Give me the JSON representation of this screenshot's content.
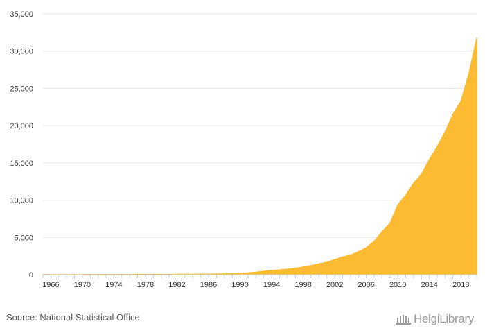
{
  "chart_data": {
    "type": "area",
    "color": "#FBB829",
    "grid": "horizontal",
    "xlim": [
      1965,
      2020
    ],
    "ylim": [
      0,
      35000
    ],
    "x_ticks": [
      "1966",
      "1970",
      "1974",
      "1978",
      "1982",
      "1986",
      "1990",
      "1994",
      "1998",
      "2002",
      "2006",
      "2010",
      "2014",
      "2018"
    ],
    "y_ticks": [
      "0",
      "5,000",
      "10,000",
      "15,000",
      "20,000",
      "25,000",
      "30,000",
      "35,000"
    ],
    "x": [
      1965,
      1966,
      1967,
      1968,
      1969,
      1970,
      1971,
      1972,
      1973,
      1974,
      1975,
      1976,
      1977,
      1978,
      1979,
      1980,
      1981,
      1982,
      1983,
      1984,
      1985,
      1986,
      1987,
      1988,
      1989,
      1990,
      1991,
      1992,
      1993,
      1994,
      1995,
      1996,
      1997,
      1998,
      1999,
      2000,
      2001,
      2002,
      2003,
      2004,
      2005,
      2006,
      2007,
      2008,
      2009,
      2010,
      2011,
      2012,
      2013,
      2014,
      2015,
      2016,
      2017,
      2018,
      2019,
      2020
    ],
    "values": [
      30,
      32,
      34,
      36,
      38,
      40,
      42,
      44,
      46,
      48,
      50,
      52,
      54,
      56,
      58,
      60,
      62,
      64,
      66,
      70,
      80,
      90,
      110,
      130,
      150,
      200,
      260,
      350,
      470,
      580,
      650,
      750,
      870,
      1050,
      1250,
      1480,
      1680,
      2050,
      2400,
      2650,
      3100,
      3650,
      4500,
      5800,
      6900,
      9400,
      10700,
      12300,
      13500,
      15500,
      17200,
      19200,
      21600,
      23300,
      27000,
      31800
    ]
  },
  "footer": {
    "source": "Source: National Statistical Office",
    "brand": "HelgiLibrary"
  }
}
